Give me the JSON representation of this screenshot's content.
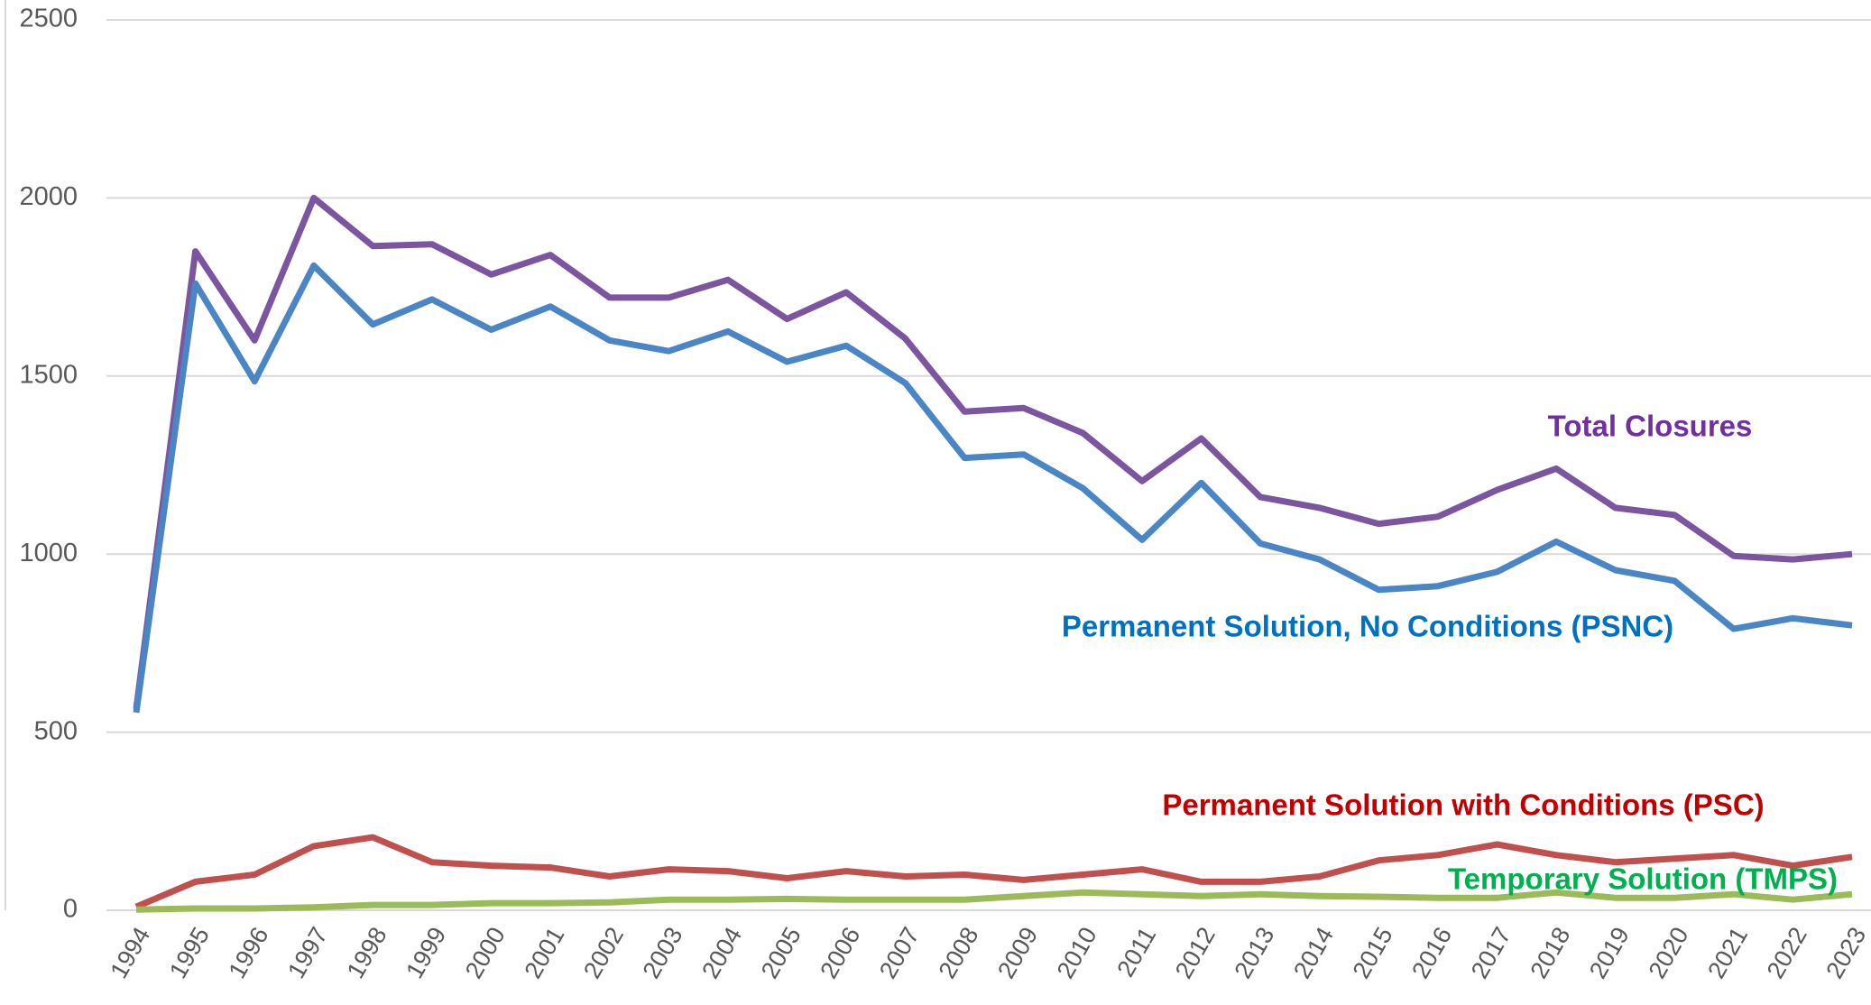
{
  "chart_data": {
    "type": "line",
    "categories": [
      "1994",
      "1995",
      "1996",
      "1997",
      "1998",
      "1999",
      "2000",
      "2001",
      "2002",
      "2003",
      "2004",
      "2005",
      "2006",
      "2007",
      "2008",
      "2009",
      "2010",
      "2011",
      "2012",
      "2013",
      "2014",
      "2015",
      "2016",
      "2017",
      "2018",
      "2019",
      "2020",
      "2021",
      "2022",
      "2023"
    ],
    "series": [
      {
        "name": "Total Closures",
        "color": "#7b559f",
        "label_color": "#7030a0",
        "values": [
          565,
          1850,
          1600,
          2000,
          1865,
          1870,
          1785,
          1840,
          1720,
          1720,
          1770,
          1660,
          1735,
          1605,
          1400,
          1410,
          1340,
          1205,
          1325,
          1160,
          1130,
          1085,
          1105,
          1180,
          1240,
          1130,
          1110,
          995,
          985,
          1000
        ]
      },
      {
        "name": "Permanent Solution, No Conditions (PSNC)",
        "color": "#4a86c5",
        "label_color": "#0070c0",
        "values": [
          555,
          1760,
          1485,
          1810,
          1645,
          1715,
          1630,
          1695,
          1600,
          1570,
          1625,
          1540,
          1585,
          1480,
          1270,
          1280,
          1185,
          1040,
          1200,
          1030,
          985,
          900,
          910,
          950,
          1035,
          955,
          925,
          790,
          820,
          800
        ]
      },
      {
        "name": "Permanent Solution with Conditions (PSC)",
        "color": "#c0504d",
        "label_color": "#c00000",
        "values": [
          10,
          80,
          100,
          180,
          205,
          135,
          125,
          120,
          95,
          115,
          110,
          90,
          110,
          95,
          100,
          85,
          100,
          115,
          80,
          80,
          95,
          140,
          155,
          185,
          155,
          135,
          145,
          155,
          125,
          150
        ]
      },
      {
        "name": "Temporary Solution (TMPS)",
        "color": "#9bbb59",
        "label_color": "#00b050",
        "values": [
          2,
          5,
          5,
          8,
          15,
          15,
          20,
          20,
          22,
          30,
          30,
          32,
          30,
          30,
          30,
          40,
          50,
          45,
          40,
          45,
          40,
          38,
          35,
          35,
          50,
          35,
          35,
          45,
          30,
          45
        ]
      }
    ],
    "ylim": [
      0,
      2500
    ],
    "yticks": [
      0,
      500,
      1000,
      1500,
      2000,
      2500
    ],
    "grid": true
  }
}
